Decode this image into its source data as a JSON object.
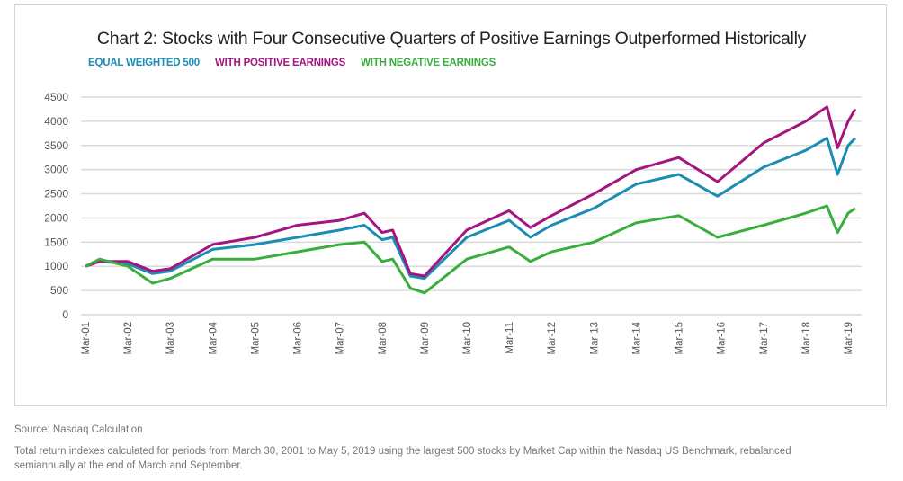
{
  "chart_data": {
    "type": "line",
    "title": "Chart 2: Stocks with Four Consecutive Quarters of Positive Earnings Outperformed Historically",
    "xlabel": "",
    "ylabel": "",
    "ylim": [
      0,
      4500
    ],
    "yticks": [
      0,
      500,
      1000,
      1500,
      2000,
      2500,
      3000,
      3500,
      4000,
      4500
    ],
    "xtick_labels": [
      "Mar-01",
      "Mar-02",
      "Mar-03",
      "Mar-04",
      "Mar-05",
      "Mar-06",
      "Mar-07",
      "Mar-08",
      "Mar-09",
      "Mar-10",
      "Mar-11",
      "Mar-12",
      "Mar-13",
      "Mar-14",
      "Mar-15",
      "Mar-16",
      "Mar-17",
      "Mar-18",
      "Mar-19"
    ],
    "grid": "horizontal",
    "legend": "top-left",
    "x": [
      "2001-03",
      "2001-07",
      "2002-03",
      "2002-10",
      "2003-03",
      "2004-03",
      "2005-03",
      "2006-03",
      "2007-03",
      "2007-10",
      "2008-03",
      "2008-06",
      "2008-11",
      "2009-03",
      "2010-03",
      "2011-03",
      "2011-09",
      "2012-03",
      "2013-03",
      "2014-03",
      "2015-03",
      "2016-02",
      "2017-03",
      "2018-03",
      "2018-09",
      "2018-12",
      "2019-03",
      "2019-05"
    ],
    "series": [
      {
        "name": "EQUAL WEIGHTED 500",
        "color": "#1b8db5",
        "values": [
          1000,
          1100,
          1050,
          850,
          900,
          1350,
          1450,
          1600,
          1750,
          1850,
          1550,
          1600,
          800,
          750,
          1600,
          1950,
          1600,
          1850,
          2200,
          2700,
          2900,
          2450,
          3050,
          3400,
          3650,
          2900,
          3500,
          3650
        ]
      },
      {
        "name": "WITH POSITIVE EARNINGS",
        "color": "#a3167f",
        "values": [
          1000,
          1100,
          1100,
          900,
          950,
          1450,
          1600,
          1850,
          1950,
          2100,
          1700,
          1750,
          850,
          800,
          1750,
          2150,
          1800,
          2050,
          2500,
          3000,
          3250,
          2750,
          3550,
          4000,
          4300,
          3450,
          4000,
          4250
        ]
      },
      {
        "name": "WITH NEGATIVE EARNINGS",
        "color": "#3aae3c",
        "values": [
          1000,
          1150,
          1000,
          650,
          750,
          1150,
          1150,
          1300,
          1450,
          1500,
          1100,
          1150,
          550,
          450,
          1150,
          1400,
          1100,
          1300,
          1500,
          1900,
          2050,
          1600,
          1850,
          2100,
          2250,
          1700,
          2100,
          2200
        ]
      }
    ]
  },
  "footer": {
    "source": "Source: Nasdaq Calculation",
    "note": "Total return indexes calculated for periods from March 30, 2001 to May 5, 2019 using the largest 500 stocks by Market Cap within the Nasdaq US Benchmark, rebalanced semiannually at the end of March and September."
  }
}
